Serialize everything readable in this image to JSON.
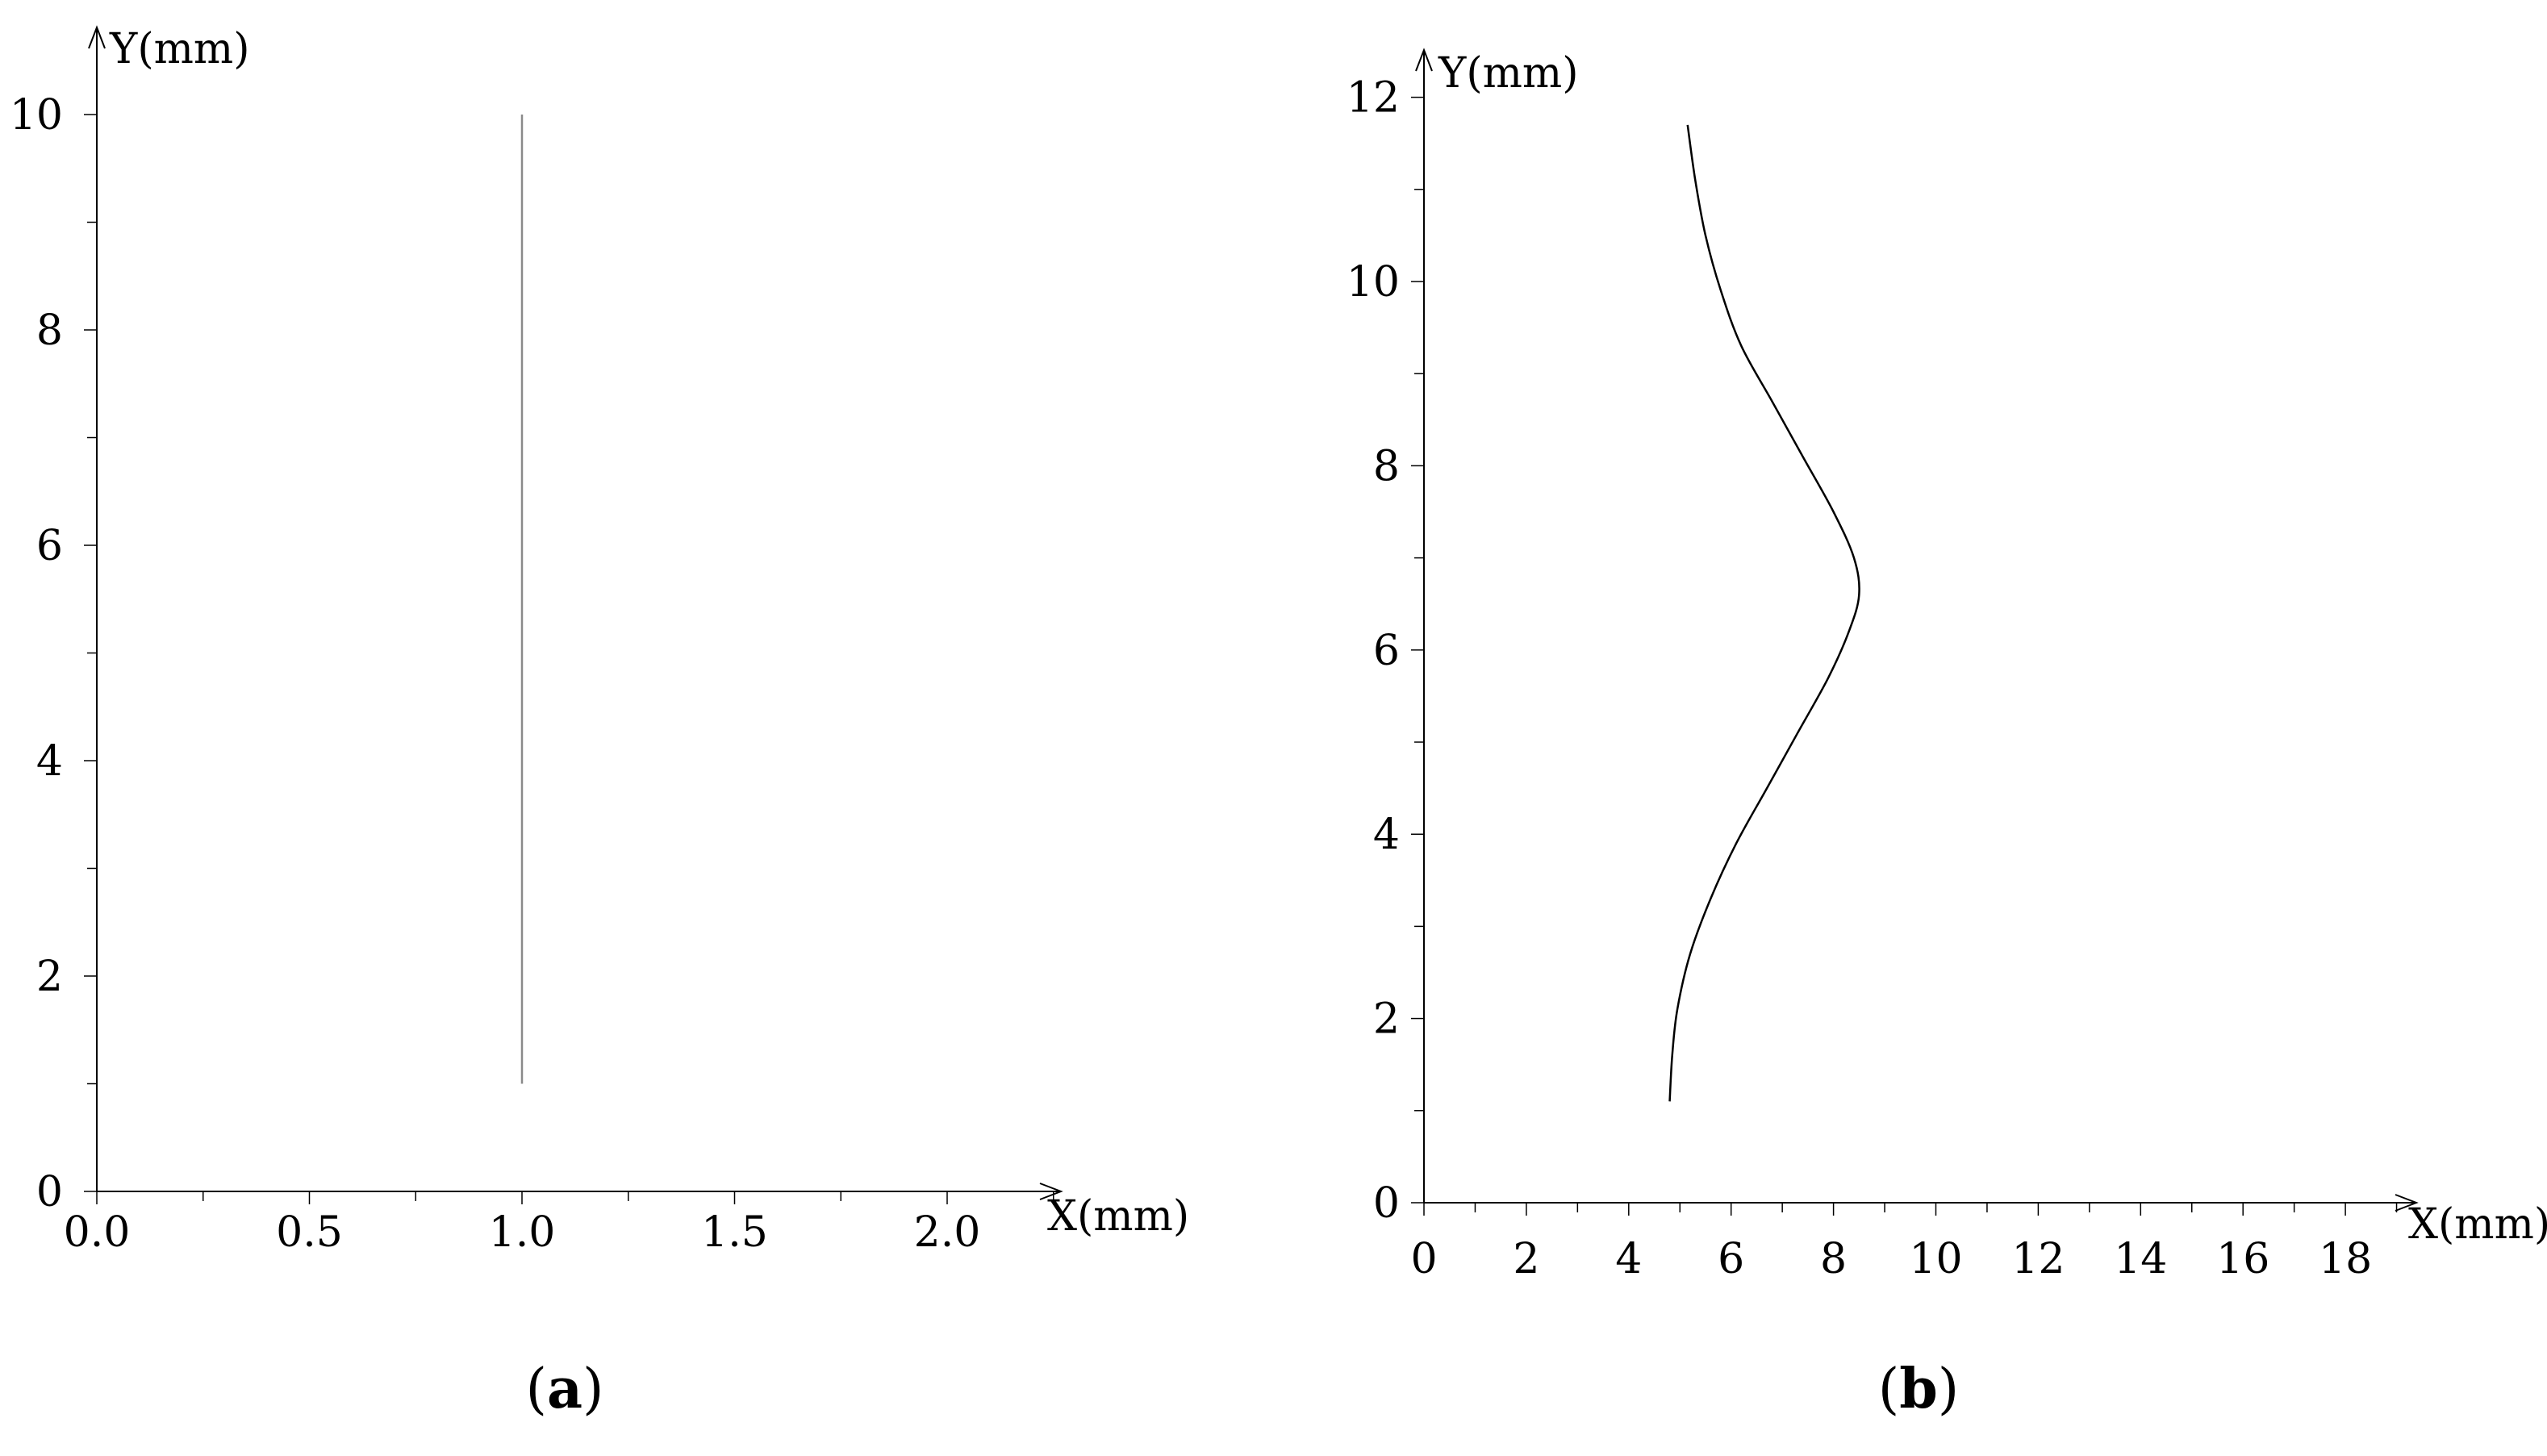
{
  "chart_data": [
    {
      "type": "line",
      "panel_label": "(a)",
      "panel_label_parts": {
        "open": "(",
        "letter": "a",
        "close": ")"
      },
      "xlabel": "X(mm)",
      "ylabel": "Y(mm)",
      "xlim": [
        0,
        2.25
      ],
      "ylim": [
        0,
        10.5
      ],
      "x_ticks": [
        0,
        0.5,
        1.0,
        1.5,
        2.0
      ],
      "x_tick_labels": [
        "0.0",
        "0.5",
        "1.0",
        "1.5",
        "2.0"
      ],
      "x_minor_step": 0.25,
      "y_ticks": [
        0,
        2,
        4,
        6,
        8,
        10
      ],
      "y_tick_labels": [
        "0",
        "2",
        "4",
        "6",
        "8",
        "10"
      ],
      "y_minor_step": 1,
      "grid": false,
      "line_color": "#8a8a8a",
      "series": [
        {
          "points": [
            [
              1.0,
              1.0
            ],
            [
              1.0,
              10.0
            ]
          ]
        }
      ]
    },
    {
      "type": "line",
      "panel_label": "(b)",
      "panel_label_parts": {
        "open": "(",
        "letter": "b",
        "close": ")"
      },
      "xlabel": "X(mm)",
      "ylabel": "Y(mm)",
      "xlim": [
        0,
        19
      ],
      "ylim": [
        0,
        12.5
      ],
      "x_ticks": [
        0,
        2,
        4,
        6,
        8,
        10,
        12,
        14,
        16,
        18
      ],
      "x_tick_labels": [
        "0",
        "2",
        "4",
        "6",
        "8",
        "10",
        "12",
        "14",
        "16",
        "18"
      ],
      "x_minor_step": 1,
      "y_ticks": [
        0,
        2,
        4,
        6,
        8,
        10,
        12
      ],
      "y_tick_labels": [
        "0",
        "2",
        "4",
        "6",
        "8",
        "10",
        "12"
      ],
      "y_minor_step": 1,
      "grid": false,
      "line_color": "#000000",
      "series": [
        {
          "points": [
            [
              4.8,
              1.1
            ],
            [
              4.85,
              1.6
            ],
            [
              4.95,
              2.1
            ],
            [
              5.2,
              2.7
            ],
            [
              5.6,
              3.3
            ],
            [
              6.1,
              3.9
            ],
            [
              6.7,
              4.5
            ],
            [
              7.3,
              5.1
            ],
            [
              7.9,
              5.7
            ],
            [
              8.3,
              6.2
            ],
            [
              8.5,
              6.6
            ],
            [
              8.4,
              7.0
            ],
            [
              8.0,
              7.5
            ],
            [
              7.4,
              8.1
            ],
            [
              6.8,
              8.7
            ],
            [
              6.2,
              9.3
            ],
            [
              5.8,
              9.9
            ],
            [
              5.5,
              10.5
            ],
            [
              5.3,
              11.1
            ],
            [
              5.15,
              11.7
            ]
          ]
        }
      ]
    }
  ]
}
